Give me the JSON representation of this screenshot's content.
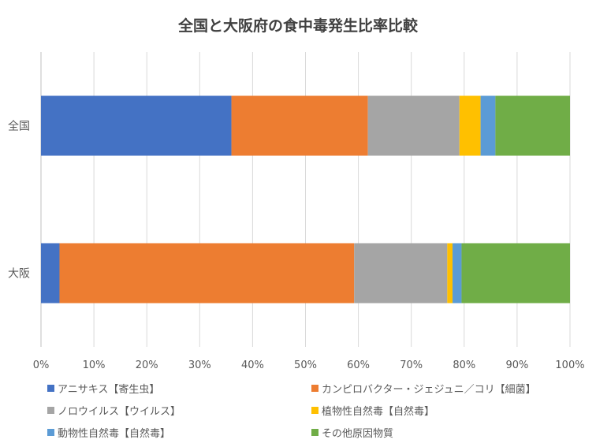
{
  "chart_data": {
    "type": "bar",
    "orientation": "horizontal",
    "stacked": "percent",
    "title": "全国と大阪府の食中毒発生比率比較",
    "categories": [
      "全国",
      "大阪"
    ],
    "series": [
      {
        "name": "アニサキス【寄生虫】",
        "color": "#4472C4",
        "values": [
          0.36,
          0.035
        ]
      },
      {
        "name": "カンピロバクター・ジェジュニ／コリ【細菌】",
        "color": "#ED7D31",
        "values": [
          0.258,
          0.557
        ]
      },
      {
        "name": "ノロウイルス【ウイルス】",
        "color": "#A5A5A5",
        "values": [
          0.173,
          0.176
        ]
      },
      {
        "name": "植物性自然毒【自然毒】",
        "color": "#FFC000",
        "values": [
          0.04,
          0.01
        ]
      },
      {
        "name": "動物性自然毒【自然毒】",
        "color": "#5B9BD5",
        "values": [
          0.028,
          0.017
        ]
      },
      {
        "name": "その他原因物質",
        "color": "#70AD47",
        "values": [
          0.141,
          0.205
        ]
      }
    ],
    "xlim": [
      0,
      1
    ],
    "xticks": [
      "0%",
      "10%",
      "20%",
      "30%",
      "40%",
      "50%",
      "60%",
      "70%",
      "80%",
      "90%",
      "100%"
    ],
    "grid": "vertical",
    "legend_position": "bottom"
  }
}
